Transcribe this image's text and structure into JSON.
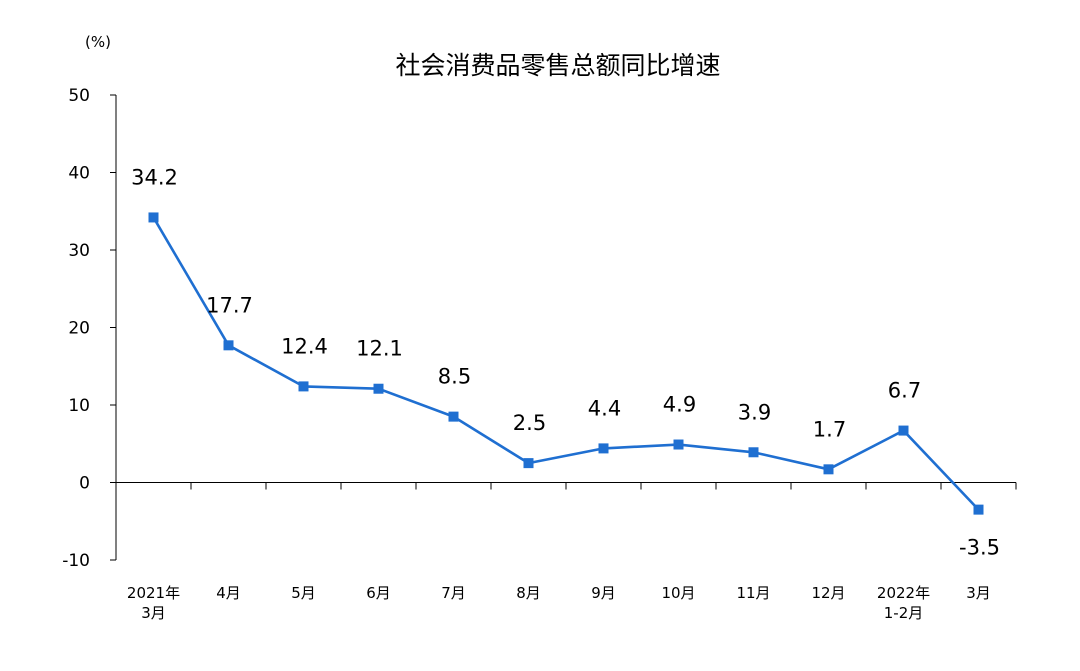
{
  "chart_data": {
    "type": "line",
    "title": "社会消费品零售总额同比增速",
    "unit_label": "(%)",
    "xlabel": "",
    "ylabel": "",
    "ylim": [
      -10,
      50
    ],
    "yticks": [
      50,
      40,
      30,
      20,
      10,
      0,
      -10
    ],
    "grid": false,
    "legend": "none",
    "categories": [
      [
        "2021年",
        "3月"
      ],
      [
        "4月"
      ],
      [
        "5月"
      ],
      [
        "6月"
      ],
      [
        "7月"
      ],
      [
        "8月"
      ],
      [
        "9月"
      ],
      [
        "10月"
      ],
      [
        "11月"
      ],
      [
        "12月"
      ],
      [
        "2022年",
        "1-2月"
      ],
      [
        "3月"
      ]
    ],
    "series": [
      {
        "values": [
          34.2,
          17.7,
          12.4,
          12.1,
          8.5,
          2.5,
          4.4,
          4.9,
          3.9,
          1.7,
          6.7,
          -3.5
        ],
        "labels": [
          "34.2",
          "17.7",
          "12.4",
          "12.1",
          "8.5",
          "2.5",
          "4.4",
          "4.9",
          "3.9",
          "1.7",
          "6.7",
          "-3.5"
        ],
        "color": "#1F6FD1"
      }
    ]
  }
}
